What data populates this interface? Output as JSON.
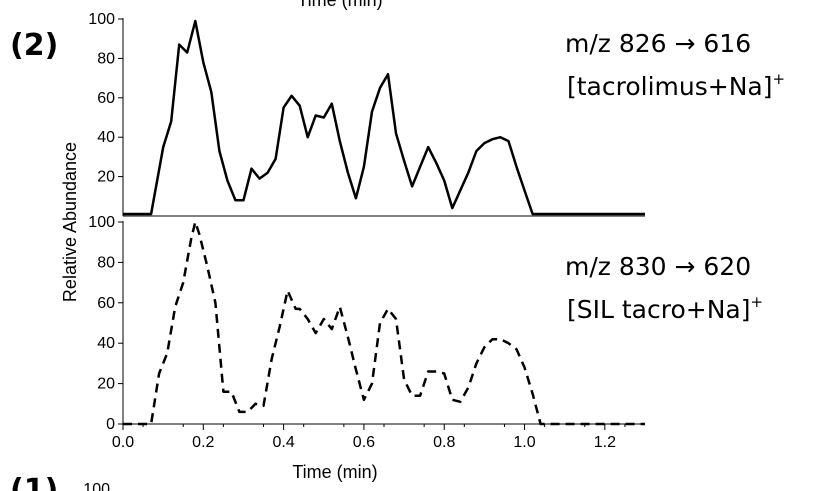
{
  "panel_label": "(2)",
  "top_clipped_text": "Time (min)",
  "bottom_clipped_label": "(1)",
  "bottom_clipped_tick": "100",
  "chart_data": [
    {
      "type": "line",
      "style": "solid",
      "color": "#000000",
      "annotation_line1": "m/z 826 → 616",
      "annotation_line2": "[tacrolimus+Na]",
      "annotation_sup": "+",
      "ylim": [
        0,
        100
      ],
      "yticks": [
        "20",
        "40",
        "60",
        "80",
        "100"
      ],
      "x": [
        0.0,
        0.05,
        0.07,
        0.1,
        0.12,
        0.14,
        0.16,
        0.18,
        0.2,
        0.22,
        0.24,
        0.26,
        0.28,
        0.3,
        0.32,
        0.34,
        0.36,
        0.38,
        0.4,
        0.42,
        0.44,
        0.46,
        0.48,
        0.5,
        0.52,
        0.54,
        0.56,
        0.58,
        0.6,
        0.62,
        0.64,
        0.66,
        0.68,
        0.7,
        0.72,
        0.74,
        0.76,
        0.78,
        0.8,
        0.82,
        0.84,
        0.86,
        0.88,
        0.9,
        0.92,
        0.94,
        0.96,
        0.98,
        1.0,
        1.02,
        1.04,
        1.06,
        1.08,
        1.1,
        1.12,
        1.15,
        1.2,
        1.25,
        1.3
      ],
      "y": [
        1,
        1,
        1,
        35,
        48,
        87,
        83,
        99,
        78,
        63,
        33,
        18,
        8,
        8,
        24,
        19,
        22,
        29,
        55,
        61,
        56,
        40,
        51,
        50,
        57,
        38,
        22,
        9,
        25,
        53,
        65,
        72,
        42,
        28,
        15,
        25,
        35,
        27,
        18,
        4,
        13,
        22,
        33,
        37,
        39,
        40,
        38,
        25,
        13,
        1,
        1,
        1,
        1,
        1,
        1,
        1,
        1,
        1,
        1
      ]
    },
    {
      "type": "line",
      "style": "dashed",
      "color": "#000000",
      "annotation_line1": "m/z 830 → 620",
      "annotation_line2": "[SIL tacro+Na]",
      "annotation_sup": "+",
      "xlabel": "Time (min)",
      "ylabel": "Relative Abundance",
      "xlim": [
        0,
        1.3
      ],
      "xticks": [
        "0.0",
        "0.2",
        "0.4",
        "0.6",
        "0.8",
        "1.0",
        "1.2"
      ],
      "ylim": [
        0,
        100
      ],
      "yticks": [
        "0",
        "20",
        "40",
        "60",
        "80",
        "100"
      ],
      "x": [
        0.0,
        0.05,
        0.07,
        0.09,
        0.11,
        0.13,
        0.15,
        0.17,
        0.18,
        0.19,
        0.21,
        0.23,
        0.25,
        0.27,
        0.29,
        0.31,
        0.33,
        0.35,
        0.37,
        0.39,
        0.41,
        0.43,
        0.44,
        0.46,
        0.48,
        0.5,
        0.52,
        0.54,
        0.56,
        0.58,
        0.6,
        0.62,
        0.64,
        0.66,
        0.68,
        0.7,
        0.72,
        0.74,
        0.76,
        0.78,
        0.8,
        0.82,
        0.84,
        0.86,
        0.88,
        0.9,
        0.92,
        0.94,
        0.96,
        0.98,
        1.0,
        1.02,
        1.04,
        1.06,
        1.08,
        1.1,
        1.13,
        1.16,
        1.2,
        1.25,
        1.3
      ],
      "y": [
        0,
        0,
        0,
        25,
        35,
        58,
        70,
        92,
        100,
        94,
        78,
        60,
        16,
        16,
        6,
        6,
        10,
        9,
        32,
        48,
        66,
        57,
        57,
        52,
        45,
        52,
        47,
        58,
        43,
        27,
        12,
        20,
        50,
        57,
        52,
        22,
        14,
        14,
        26,
        26,
        25,
        12,
        11,
        18,
        30,
        38,
        42,
        42,
        40,
        37,
        28,
        15,
        0,
        0,
        0,
        0,
        0,
        0,
        0,
        0,
        0
      ]
    }
  ]
}
